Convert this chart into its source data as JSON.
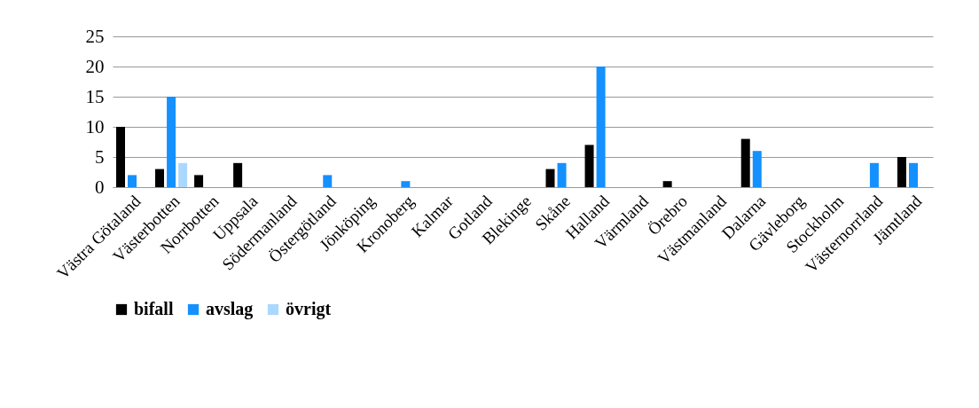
{
  "chart_data": {
    "type": "bar",
    "categories": [
      "Västra Götaland",
      "Västerbotten",
      "Norrbotten",
      "Uppsala",
      "Södermanland",
      "Östergötland",
      "Jönköping",
      "Kronoberg",
      "Kalmar",
      "Gotland",
      "Blekinge",
      "Skåne",
      "Halland",
      "Värmland",
      "Örebro",
      "Västmanland",
      "Dalarna",
      "Gävleborg",
      "Stockholm",
      "Västernorrland",
      "Jämtland"
    ],
    "series": [
      {
        "name": "bifall",
        "color": "#000000",
        "values": [
          10,
          3,
          2,
          4,
          0,
          0,
          0,
          0,
          0,
          0,
          0,
          3,
          7,
          0,
          1,
          0,
          8,
          0,
          0,
          0,
          5
        ]
      },
      {
        "name": "avslag",
        "color": "#1590ff",
        "values": [
          2,
          15,
          0,
          0,
          0,
          2,
          0,
          1,
          0,
          0,
          0,
          4,
          20,
          0,
          0,
          0,
          6,
          0,
          0,
          4,
          4
        ]
      },
      {
        "name": "övrigt",
        "color": "#aad8ff",
        "values": [
          0,
          4,
          0,
          0,
          0,
          0,
          0,
          0,
          0,
          0,
          0,
          0,
          0,
          0,
          0,
          0,
          0,
          0,
          0,
          0,
          0
        ]
      }
    ],
    "ylim": [
      0,
      25
    ],
    "yticks": [
      0,
      5,
      10,
      15,
      20,
      25
    ],
    "grid": "y",
    "legend": "bottom"
  }
}
